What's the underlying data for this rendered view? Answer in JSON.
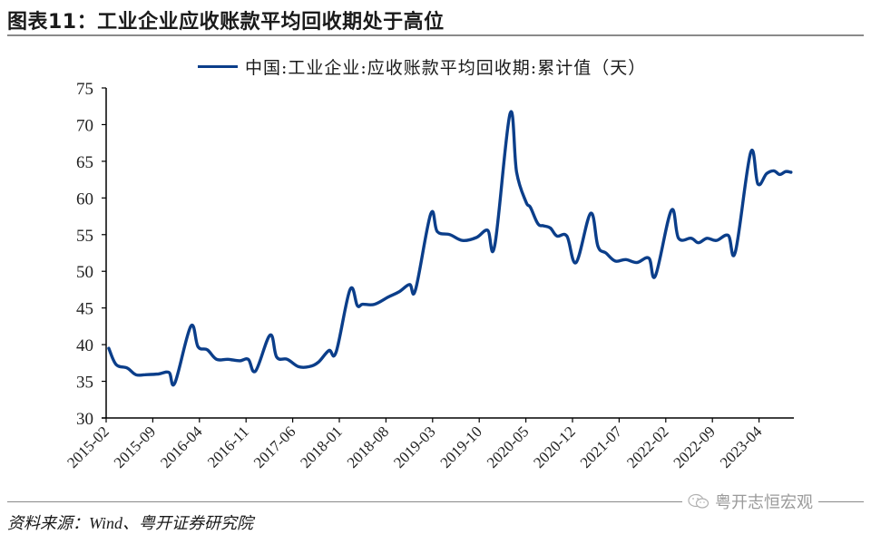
{
  "header": {
    "title": "图表11：工业企业应收账款平均回收期处于高位"
  },
  "footer": {
    "source": "资料来源：Wind、粤开证券研究院",
    "watermark": "粤开志恒宏观"
  },
  "colors": {
    "series": "#0b3e8a",
    "axis": "#000000",
    "rule": "#8a8a8a"
  },
  "chart_data": {
    "type": "line",
    "title": "工业企业应收账款平均回收期处于高位",
    "xlabel": "",
    "ylabel": "",
    "ylim": [
      30,
      75
    ],
    "yticks": [
      30,
      35,
      40,
      45,
      50,
      55,
      60,
      65,
      70,
      75
    ],
    "xtick_labels": [
      "2015-02",
      "2015-09",
      "2016-04",
      "2016-11",
      "2017-06",
      "2018-01",
      "2018-08",
      "2019-03",
      "2019-10",
      "2020-05",
      "2020-12",
      "2021-07",
      "2022-02",
      "2022-09",
      "2023-04"
    ],
    "grid": false,
    "legend_position": "top",
    "series": [
      {
        "name": "中国:工业企业:应收账款平均回收期:累计值（天）",
        "color": "#0b3e8a",
        "x_month_index": [
          0.4,
          1.5,
          3.2,
          4.5,
          5.9,
          7.9,
          9.5,
          10.4,
          12.8,
          13.9,
          15.3,
          16.7,
          18.4,
          20.2,
          21.5,
          22.6,
          24.8,
          25.8,
          27.4,
          29.1,
          30.7,
          32.1,
          33.7,
          34.8,
          36.9,
          38.0,
          38.8,
          40.6,
          42.7,
          44.3,
          45.9,
          46.8,
          49.1,
          50.1,
          52.0,
          53.9,
          56.0,
          57.7,
          58.8,
          61.1,
          62.1,
          63.5,
          64.2,
          65.3,
          66.2,
          67.2,
          68.2,
          69.7,
          71.1,
          73.3,
          74.4,
          75.6,
          77.0,
          78.6,
          80.3,
          82.1,
          83.1,
          85.5,
          86.6,
          88.5,
          89.6,
          90.9,
          92.3,
          94.1,
          95.2,
          97.5,
          98.6,
          99.9,
          101.0,
          101.9,
          102.8,
          103.6
        ],
        "values": [
          39.5,
          37.3,
          36.8,
          35.9,
          35.9,
          36.0,
          36.2,
          34.8,
          42.5,
          39.7,
          39.3,
          38.0,
          38.0,
          37.8,
          38.0,
          36.4,
          41.3,
          38.3,
          38.0,
          37.0,
          37.0,
          37.6,
          39.2,
          39.0,
          47.5,
          45.3,
          45.5,
          45.5,
          46.5,
          47.2,
          48.2,
          47.5,
          57.8,
          55.4,
          55.0,
          54.2,
          54.6,
          55.6,
          53.6,
          71.5,
          63.5,
          59.5,
          58.7,
          56.5,
          56.2,
          55.9,
          54.8,
          54.8,
          51.2,
          57.9,
          53.4,
          52.5,
          51.4,
          51.6,
          51.2,
          51.8,
          49.4,
          58.3,
          54.5,
          54.5,
          53.9,
          54.5,
          54.2,
          54.9,
          52.7,
          66.2,
          61.9,
          63.3,
          63.7,
          63.2,
          63.6,
          63.5
        ]
      }
    ]
  }
}
